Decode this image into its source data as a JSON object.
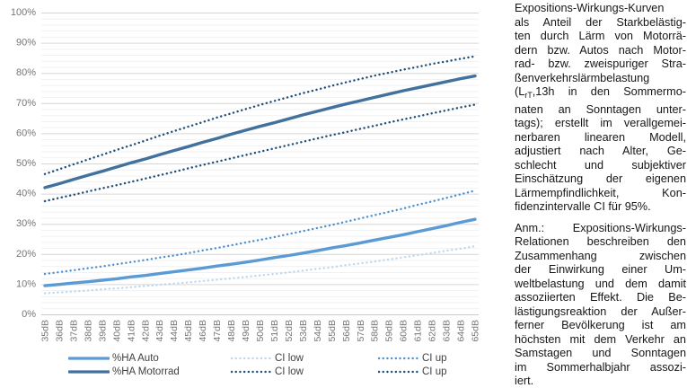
{
  "chart_data": {
    "type": "line",
    "title": "",
    "xlabel": "",
    "ylabel": "",
    "ylim": [
      0,
      100
    ],
    "y_major_step": 10,
    "y_minor_step": 2,
    "grid": "on",
    "legend_position": "bottom",
    "y_tick_labels": [
      "0%",
      "10%",
      "20%",
      "30%",
      "40%",
      "50%",
      "60%",
      "70%",
      "80%",
      "90%",
      "100%"
    ],
    "x_categories": [
      "35dB",
      "36dB",
      "37dB",
      "38dB",
      "39dB",
      "40dB",
      "41dB",
      "42dB",
      "43dB",
      "44dB",
      "45dB",
      "46dB",
      "47dB",
      "48dB",
      "49dB",
      "50dB",
      "51dB",
      "52dB",
      "53dB",
      "54dB",
      "55dB",
      "56dB",
      "57dB",
      "58dB",
      "59dB",
      "60dB",
      "61dB",
      "62dB",
      "63dB",
      "64dB",
      "65dB"
    ],
    "series": [
      {
        "name": "%HA Auto",
        "style": "solid",
        "color": "#5B9BD5",
        "values": [
          9.5,
          9.9,
          10.4,
          10.8,
          11.3,
          11.8,
          12.4,
          12.9,
          13.5,
          14.1,
          14.7,
          15.3,
          16.0,
          16.6,
          17.3,
          18.0,
          18.8,
          19.5,
          20.3,
          21.1,
          22.0,
          22.8,
          23.7,
          24.6,
          25.5,
          26.4,
          27.4,
          28.4,
          29.4,
          30.5,
          31.5
        ]
      },
      {
        "name": "CI low",
        "style": "dotted",
        "color": "#BDD7EE",
        "values": [
          7.0,
          7.3,
          7.6,
          7.9,
          8.3,
          8.6,
          9.0,
          9.4,
          9.8,
          10.2,
          10.6,
          11.0,
          11.5,
          11.9,
          12.4,
          12.9,
          13.4,
          13.9,
          14.5,
          15.1,
          15.6,
          16.3,
          16.9,
          17.5,
          18.2,
          18.9,
          19.6,
          20.3,
          21.1,
          21.8,
          22.6
        ]
      },
      {
        "name": "CI up",
        "style": "dotted",
        "color": "#4E91D0",
        "values": [
          13.4,
          14.0,
          14.6,
          15.3,
          15.9,
          16.6,
          17.3,
          18.0,
          18.8,
          19.5,
          20.3,
          21.2,
          22.0,
          22.9,
          23.8,
          24.7,
          25.6,
          26.6,
          27.6,
          28.6,
          29.6,
          30.7,
          31.8,
          32.9,
          34.0,
          35.1,
          36.3,
          37.4,
          38.6,
          39.8,
          41.0
        ]
      },
      {
        "name": "%HA Motorrad",
        "style": "solid",
        "color": "#41719C",
        "values": [
          42.0,
          43.3,
          44.7,
          46.1,
          47.4,
          48.8,
          50.2,
          51.5,
          52.9,
          54.3,
          55.6,
          57.0,
          58.3,
          59.7,
          61.0,
          62.3,
          63.5,
          64.8,
          66.1,
          67.3,
          68.5,
          69.7,
          70.8,
          71.9,
          73.0,
          74.1,
          75.1,
          76.1,
          77.1,
          78.1,
          79.0
        ]
      },
      {
        "name": "CI low",
        "style": "dotted",
        "color": "#1F4E79",
        "values": [
          37.5,
          38.6,
          39.6,
          40.7,
          41.8,
          42.8,
          43.9,
          45.0,
          46.1,
          47.2,
          48.4,
          49.5,
          50.6,
          51.7,
          52.8,
          53.9,
          55.0,
          56.1,
          57.2,
          58.3,
          59.4,
          60.4,
          61.5,
          62.5,
          63.6,
          64.6,
          65.6,
          66.6,
          67.6,
          68.6,
          69.5
        ]
      },
      {
        "name": "CI up",
        "style": "dotted",
        "color": "#1F4E79",
        "values": [
          46.5,
          48.1,
          49.7,
          51.3,
          52.9,
          54.5,
          56.0,
          57.6,
          59.2,
          60.7,
          62.2,
          63.7,
          65.2,
          66.6,
          68.0,
          69.4,
          70.7,
          72.0,
          73.3,
          74.5,
          75.7,
          76.9,
          78.0,
          79.1,
          80.1,
          81.1,
          82.0,
          83.0,
          83.8,
          84.7,
          85.5
        ]
      }
    ],
    "axis_colors": {
      "tick_label": "#767676",
      "grid_major": "#D6D6D6",
      "grid_minor": "#F1F1F1",
      "axis_line": "#C9C9C9"
    }
  },
  "caption": {
    "paragraphs": [
      {
        "lines": [
          "Expositions-Wirkungs-Kurven",
          "als Anteil der Starkbelästig-",
          "ten durch Lärm von Motorrä-",
          "dern bzw. Autos nach Motor-",
          "rad- bzw. zweispuriger Stra-",
          "ßenverkehrslärmbelastung",
          [
            {
              "t": "(L"
            },
            {
              "t": "rT",
              "sub": true
            },
            {
              "t": ",13h in den Sommermo-"
            }
          ],
          "naten an Sonntagen unter-",
          "tags); erstellt im verallgemei-",
          "nerbaren linearen Modell,",
          "adjustiert nach Alter, Ge-",
          "schlecht und subjektiver",
          "Einschätzung der eigenen",
          "Lärmempfindlichkeit, Kon-",
          "fidenzintervalle CI für 95%."
        ]
      },
      {
        "lines": [
          "Anm.: Expositions-Wirkungs-",
          "Relationen beschreiben den",
          "Zusammenhang zwischen",
          "der Einwirkung einer Um-",
          "weltbelastung und dem damit",
          "assoziierten Effekt. Die Be-",
          "lästigungsreaktion der Außer-",
          "ferner Bevölkerung ist am",
          "höchsten mit dem Verkehr an",
          "Samstagen und Sonntagen",
          "im Sommerhalbjahr assozi-",
          "iert."
        ]
      }
    ]
  }
}
